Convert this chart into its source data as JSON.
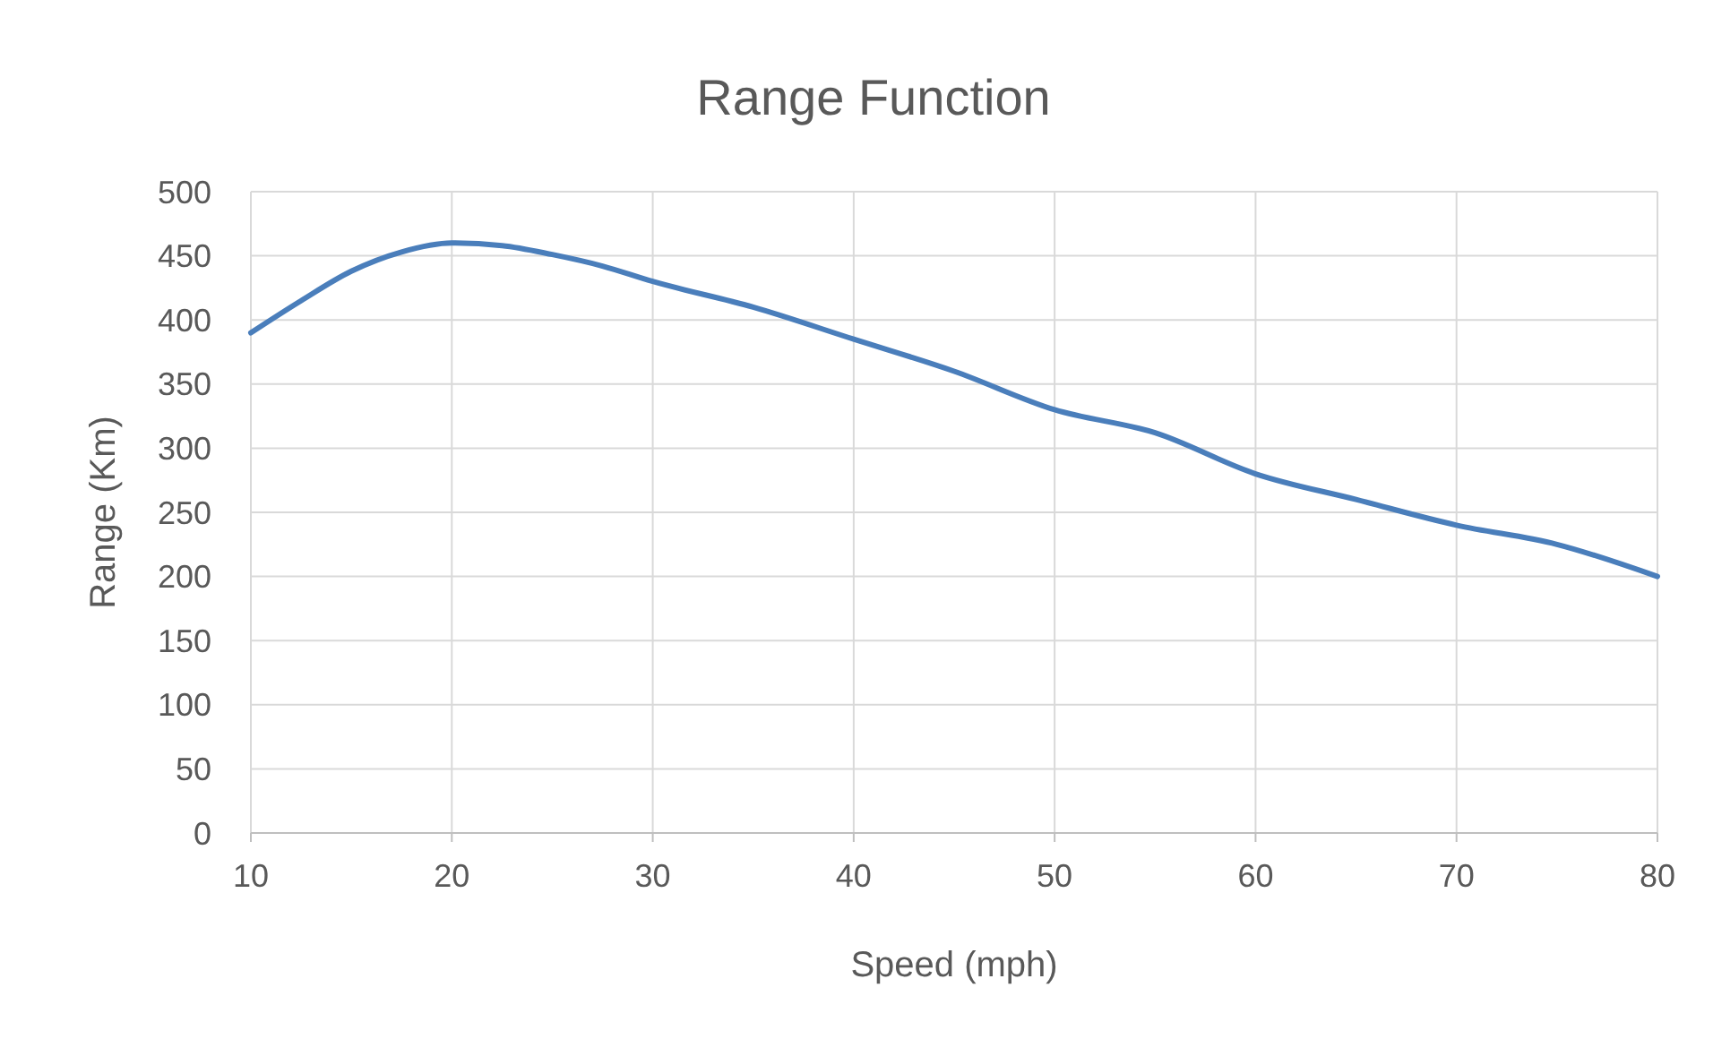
{
  "chart_data": {
    "type": "line",
    "title": "Range Function",
    "xlabel": "Speed (mph)",
    "ylabel": "Range (Km)",
    "x": [
      10,
      12.5,
      15,
      17.5,
      20,
      22.5,
      25,
      27.5,
      30,
      35,
      40,
      45,
      50,
      55,
      60,
      65,
      70,
      75,
      80
    ],
    "series": [
      {
        "color": "#4a7ebb",
        "values": [
          390,
          415,
          438,
          453,
          460,
          458,
          451,
          442,
          430,
          410,
          385,
          360,
          330,
          312,
          280,
          260,
          240,
          225,
          200
        ]
      }
    ],
    "xlim": [
      10,
      80
    ],
    "xticks": [
      10,
      20,
      30,
      40,
      50,
      60,
      70,
      80
    ],
    "ylim": [
      0,
      500
    ],
    "yticks": [
      0,
      50,
      100,
      150,
      200,
      250,
      300,
      350,
      400,
      450,
      500
    ],
    "grid": true,
    "marker": "none",
    "line_style": "solid"
  }
}
